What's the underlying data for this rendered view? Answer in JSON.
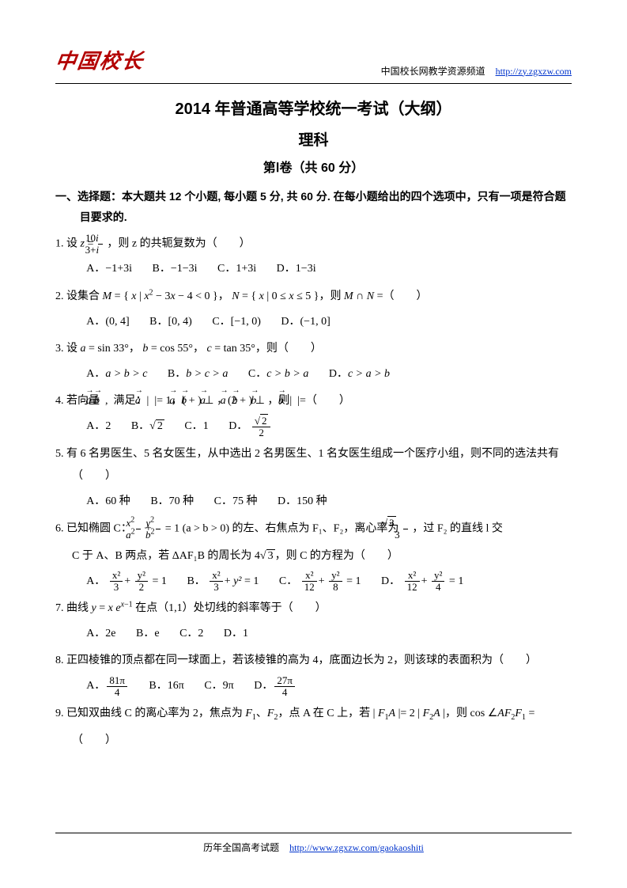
{
  "header": {
    "logo": "中国校长",
    "right_text": "中国校长网教学资源频道",
    "right_url": "http://zy.zgxzw.com"
  },
  "titles": {
    "main": "2014 年普通高等学校统一考试（大纲）",
    "sub": "理科",
    "section": "第Ⅰ卷（共 60 分）"
  },
  "instruction": "一、选择题：本大题共 12 个小题, 每小题 5 分, 共 60 分. 在每小题给出的四个选项中，只有一项是符合题目要求的.",
  "q1": {
    "pre": "1. 设",
    "post": "，则 z 的共轭复数为（　　）",
    "frac_n": "10i",
    "frac_d": "3+i",
    "A": "−1+3i",
    "B": "−1−3i",
    "C": "1+3i",
    "D": "1−3i"
  },
  "q2": {
    "text": "2. 设集合 M = { x | x² − 3x − 4 < 0 }， N = { x | 0 ≤ x ≤ 5 }，则 M ∩ N =（　　）",
    "A": "(0, 4]",
    "B": "[0, 4)",
    "C": "[−1, 0)",
    "D": "(−1, 0]"
  },
  "q3": {
    "text": "3. 设 a = sin 33°， b = cos 55°， c = tan 35°，则（　　）",
    "A": "a > b > c",
    "B": "b > c > a",
    "C": "c > b > a",
    "D": "c > a > b"
  },
  "q4": {
    "text_pre": "4. 若向量",
    "text_mid1": "满足：| ",
    "text_mid2": " |= 1，(",
    "text_mid3": ") ⊥ ",
    "text_mid4": "，(2",
    "text_mid5": ") ⊥ ",
    "text_mid6": "，则| ",
    "text_post": " |=（　　）",
    "A": "2",
    "B_arg": "2",
    "C": "1",
    "D_n_arg": "2",
    "D_d": "2"
  },
  "q5": {
    "text": "5. 有 6 名男医生、5 名女医生，从中选出 2 名男医生、1 名女医生组成一个医疗小组，则不同的选法共有（　　）",
    "A": "A．60 种",
    "B": "B．70 种",
    "C": "C．75 种",
    "D": "D．150 种"
  },
  "q6": {
    "pre": "6. 已知椭圆 C：",
    "mid1": "(a > b > 0) 的左、右焦点为 F₁、F₂，离心率为",
    "mid2": "，过 F₂ 的直线 l 交",
    "line2_pre": "C 于 A、B 两点，若 ΔAF₁B 的周长为 4",
    "line2_post": "，则 C 的方程为（　　）",
    "sqrt3": "3",
    "A_xn": "x²",
    "A_xd": "3",
    "A_yn": "y²",
    "A_yd": "2",
    "B_xn": "x²",
    "B_xd": "3",
    "B_y": "y²",
    "C_xn": "x²",
    "C_xd": "12",
    "C_yn": "y²",
    "C_yd": "8",
    "D_xn": "x²",
    "D_xd": "12",
    "D_yn": "y²",
    "D_yd": "4",
    "eq1": " = 1"
  },
  "q7": {
    "text": "7. 曲线 y = x e^{x−1} 在点（1,1）处切线的斜率等于（　　）",
    "A": "A．2e",
    "B": "B．e",
    "C": "C．2",
    "D": "D．1"
  },
  "q8": {
    "text": "8. 正四棱锥的顶点都在同一球面上，若该棱锥的高为 4，底面边长为 2，则该球的表面积为（　　）",
    "A_n": "81π",
    "A_d": "4",
    "B": "16π",
    "C": "9π",
    "D_n": "27π",
    "D_d": "4"
  },
  "q9": {
    "text": "9. 已知双曲线 C 的离心率为 2，焦点为 F₁、F₂，点 A 在 C 上，若 | F₁A | = 2 | F₂A |，则 cos ∠AF₂F₁ =",
    "paren": "（　　）"
  },
  "footer": {
    "text": "历年全国高考试题",
    "url": "http://www.zgxzw.com/gaokaoshiti"
  }
}
